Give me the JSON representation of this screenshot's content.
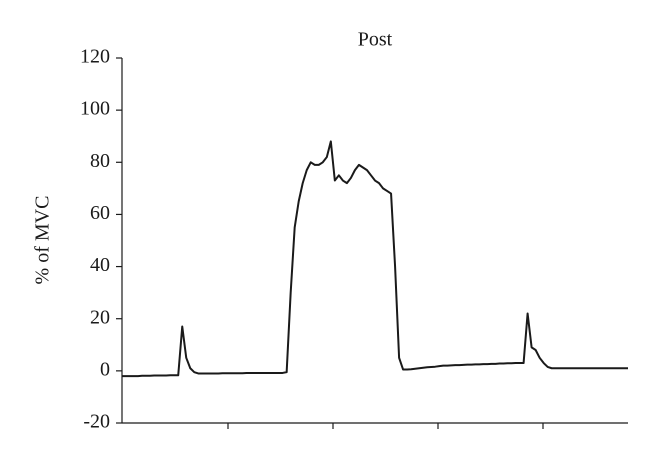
{
  "chart_data": {
    "type": "line",
    "title": "Post",
    "y_label": "% of MVC",
    "series": [
      {
        "color": "#1a1a1a",
        "values": [
          -2,
          -2,
          -2,
          -2,
          -2,
          -1.9,
          -1.9,
          -1.9,
          -1.8,
          -1.8,
          -1.8,
          -1.8,
          -1.7,
          -1.7,
          -1.7,
          17,
          5,
          1,
          -0.5,
          -1,
          -1,
          -1,
          -1,
          -1,
          -1,
          -0.9,
          -0.9,
          -0.9,
          -0.9,
          -0.9,
          -0.9,
          -0.8,
          -0.8,
          -0.8,
          -0.8,
          -0.8,
          -0.8,
          -0.8,
          -0.8,
          -0.8,
          -0.8,
          -0.5,
          30,
          55,
          65,
          72,
          77,
          80,
          79,
          79,
          80,
          82,
          88,
          73,
          75,
          73,
          72,
          74,
          77,
          79,
          78,
          77,
          75,
          73,
          72,
          70,
          69,
          68,
          40,
          5,
          0.5,
          0.5,
          0.6,
          0.8,
          1,
          1.2,
          1.4,
          1.5,
          1.6,
          1.8,
          2,
          2,
          2.1,
          2.2,
          2.2,
          2.3,
          2.4,
          2.4,
          2.5,
          2.5,
          2.6,
          2.6,
          2.7,
          2.7,
          2.8,
          2.8,
          2.9,
          2.9,
          3,
          3,
          3,
          22,
          9,
          8,
          5,
          3,
          1.5,
          1,
          1,
          1,
          1,
          1,
          1,
          1,
          1,
          1,
          1,
          1,
          1,
          1,
          1,
          1,
          1,
          1,
          1,
          1,
          1
        ]
      }
    ],
    "ylim": [
      -20,
      120
    ],
    "yticks": [
      -20,
      0,
      20,
      40,
      60,
      80,
      100,
      120
    ]
  }
}
